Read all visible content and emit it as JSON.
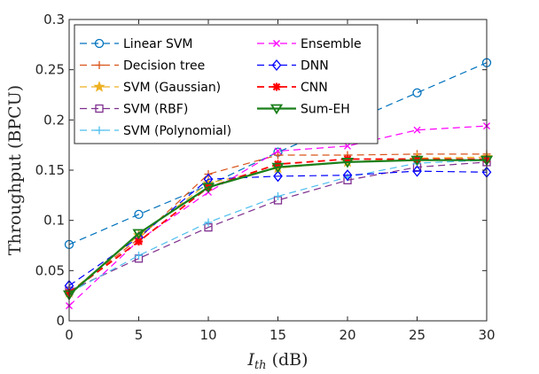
{
  "chart_data": {
    "type": "line",
    "xlabel_main": "I",
    "xlabel_sub": "th",
    "xlabel_unit": " (dB)",
    "ylabel": "Throughput (BPCU)",
    "x": [
      0,
      5,
      10,
      15,
      20,
      25,
      30
    ],
    "xlim": [
      0,
      30
    ],
    "ylim": [
      0,
      0.3
    ],
    "xticks": [
      "0",
      "5",
      "10",
      "15",
      "20",
      "25",
      "30"
    ],
    "yticks": [
      "0",
      "0.05",
      "0.1",
      "0.15",
      "0.2",
      "0.25",
      "0.3"
    ],
    "grid": false,
    "legend_position": "top-left",
    "series": [
      {
        "name": "Linear SVM",
        "values": [
          0.076,
          0.106,
          0.135,
          0.168,
          0.197,
          0.227,
          0.257
        ],
        "color": "#0072BD",
        "dash": "8,5",
        "marker": "circle",
        "width": 1.2
      },
      {
        "name": "Decision tree",
        "values": [
          0.028,
          0.082,
          0.146,
          0.165,
          0.165,
          0.166,
          0.166
        ],
        "color": "#D95319",
        "dash": "8,5",
        "marker": "plus",
        "width": 1.2
      },
      {
        "name": "SVM (Gaussian)",
        "values": [
          0.028,
          0.085,
          0.137,
          0.152,
          0.158,
          0.162,
          0.163
        ],
        "color": "#EDB120",
        "dash": "8,5",
        "marker": "star",
        "width": 1.2
      },
      {
        "name": "SVM (RBF)",
        "values": [
          0.03,
          0.062,
          0.093,
          0.12,
          0.14,
          0.153,
          0.158
        ],
        "color": "#7E2F8E",
        "dash": "8,5",
        "marker": "square",
        "width": 1.2
      },
      {
        "name": "SVM (Polynomial)",
        "values": [
          0.028,
          0.065,
          0.098,
          0.124,
          0.143,
          0.157,
          0.16
        ],
        "color": "#4DBEEE",
        "dash": "8,5",
        "marker": "plus",
        "width": 1.2
      },
      {
        "name": "Ensemble",
        "values": [
          0.015,
          0.08,
          0.128,
          0.169,
          0.174,
          0.19,
          0.194
        ],
        "color": "#FF00FF",
        "dash": "8,5",
        "marker": "x",
        "width": 1.2
      },
      {
        "name": "DNN",
        "values": [
          0.035,
          0.083,
          0.141,
          0.144,
          0.145,
          0.149,
          0.148
        ],
        "color": "#0000FF",
        "dash": "8,5",
        "marker": "diamond",
        "width": 1.2
      },
      {
        "name": "CNN",
        "values": [
          0.028,
          0.079,
          0.133,
          0.156,
          0.161,
          0.161,
          0.161
        ],
        "color": "#FF0000",
        "dash": "8,5",
        "marker": "asterisk",
        "width": 1.8
      },
      {
        "name": "Sum-EH",
        "values": [
          0.026,
          0.087,
          0.133,
          0.153,
          0.158,
          0.16,
          0.16
        ],
        "color": "#1A7F1A",
        "dash": "",
        "marker": "triangle-down",
        "width": 2.2
      }
    ]
  }
}
